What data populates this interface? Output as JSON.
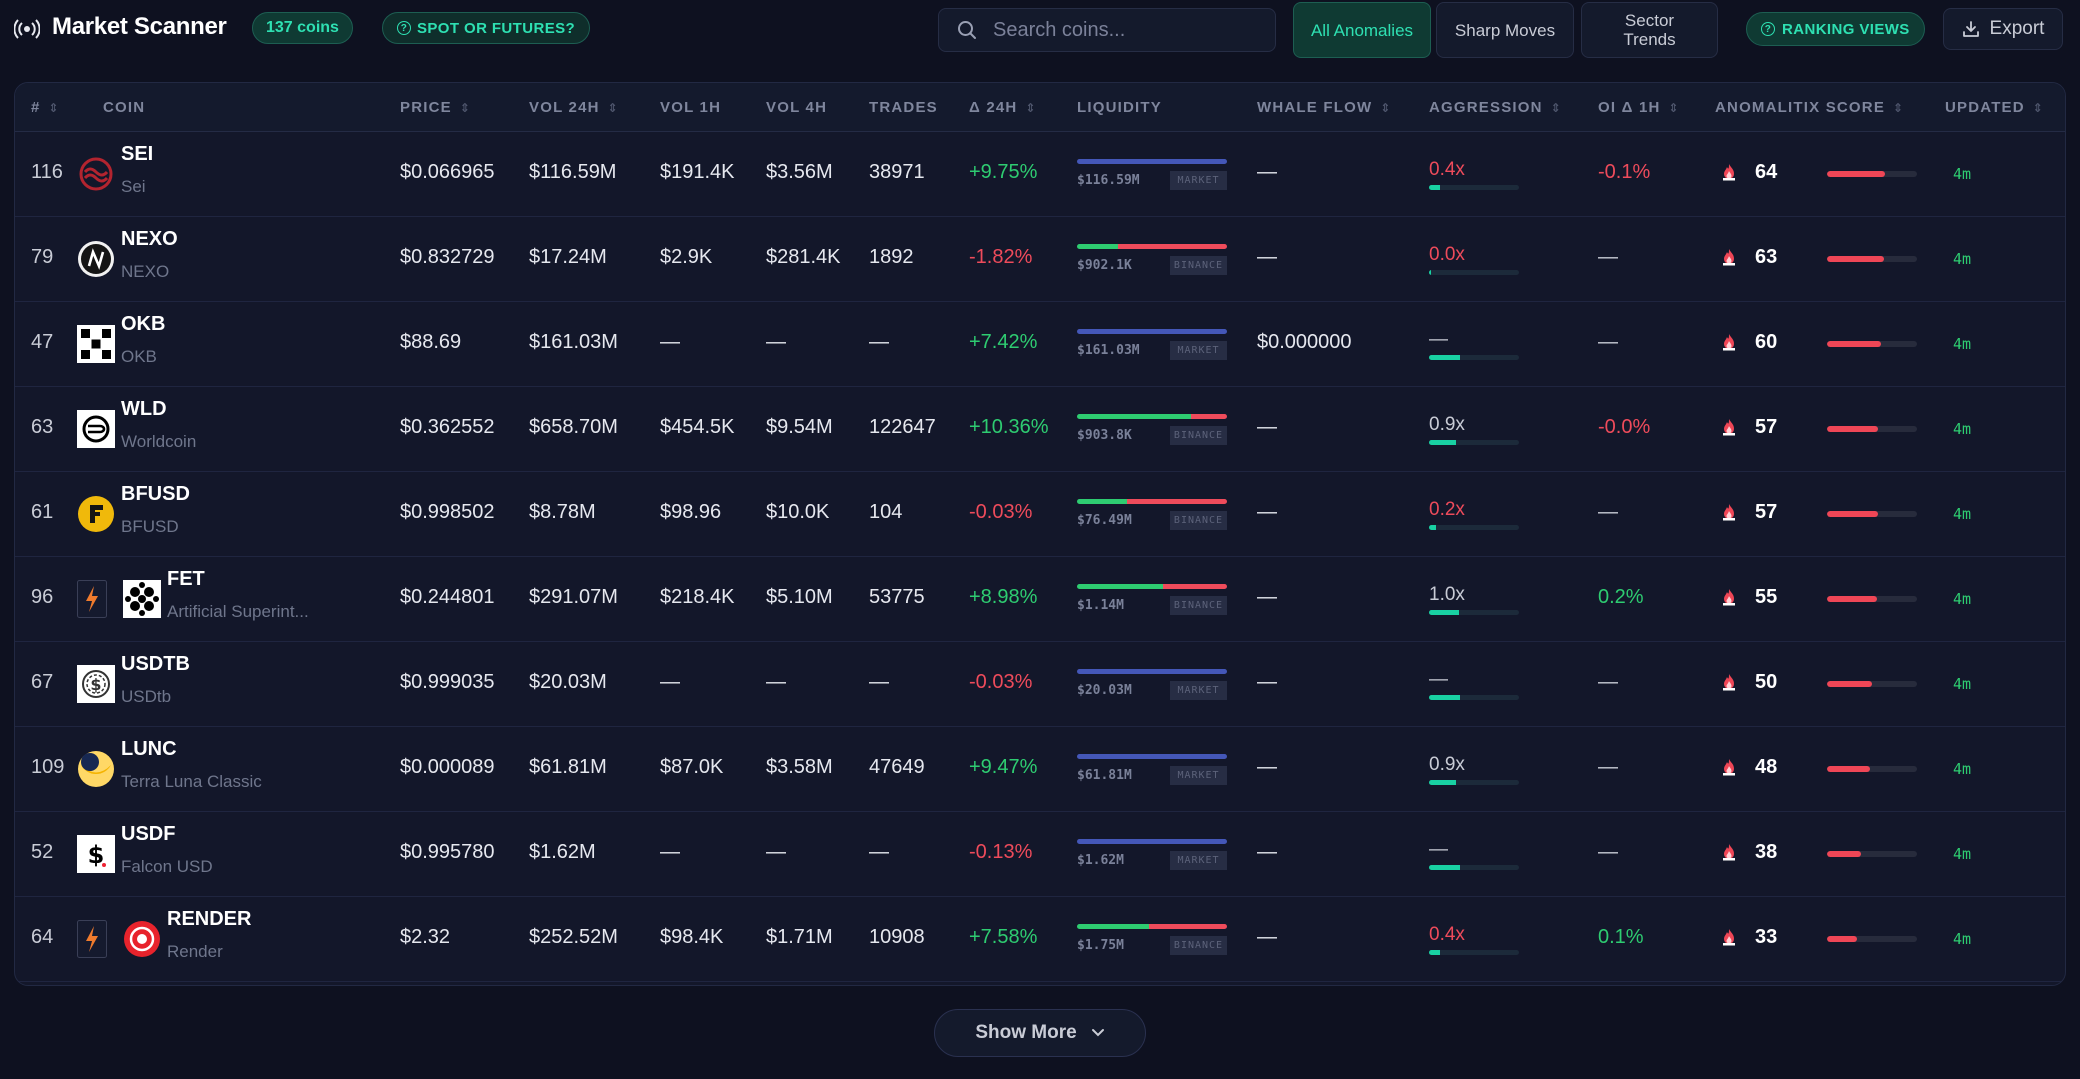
{
  "header": {
    "title": "Market Scanner",
    "coin_count": "137 coins",
    "spot_futures": "SPOT OR FUTURES?",
    "search_placeholder": "Search coins...",
    "tabs": [
      "All Anomalies",
      "Sharp Moves",
      "Sector Trends"
    ],
    "ranking_views": "RANKING VIEWS",
    "export": "Export",
    "accent_color": "#2ee0b2"
  },
  "columns": [
    "#",
    "COIN",
    "PRICE",
    "VOL 24H",
    "VOL 1H",
    "VOL 4H",
    "TRADES",
    "Δ 24H",
    "LIQUIDITY",
    "WHALE FLOW",
    "AGGRESSION",
    "OI Δ 1H",
    "ANOMALITIX SCORE",
    "UPDATED"
  ],
  "rows": [
    {
      "rank": "116",
      "symbol": "SEI",
      "name": "Sei",
      "logo": "sei-logo",
      "price": "$0.066965",
      "vol24": "$116.59M",
      "vol1h": "$191.4K",
      "vol4h": "$3.56M",
      "trades": "38971",
      "chg": "+9.75%",
      "chg_dir": "pos",
      "liq_val": "$116.59M",
      "liq_src": "MARKET",
      "liq_type": "market",
      "liq_green": 0,
      "whale": "—",
      "agg": "0.4x",
      "agg_dir": "neg",
      "agg_fill": 0.12,
      "oi": "-0.1%",
      "oi_dir": "neg",
      "score": "64",
      "score_fill": 0.64,
      "updated": "4m"
    },
    {
      "rank": "79",
      "symbol": "NEXO",
      "name": "NEXO",
      "logo": "nexo-logo",
      "price": "$0.832729",
      "vol24": "$17.24M",
      "vol1h": "$2.9K",
      "vol4h": "$281.4K",
      "trades": "1892",
      "chg": "-1.82%",
      "chg_dir": "neg",
      "liq_val": "$902.1K",
      "liq_src": "BINANCE",
      "liq_type": "binance",
      "liq_green": 0.27,
      "whale": "—",
      "agg": "0.0x",
      "agg_dir": "neg",
      "agg_fill": 0.02,
      "oi": "—",
      "oi_dir": "muted",
      "score": "63",
      "score_fill": 0.63,
      "updated": "4m"
    },
    {
      "rank": "47",
      "symbol": "OKB",
      "name": "OKB",
      "logo": "okb-logo",
      "price": "$88.69",
      "vol24": "$161.03M",
      "vol1h": "—",
      "vol4h": "—",
      "trades": "—",
      "chg": "+7.42%",
      "chg_dir": "pos",
      "liq_val": "$161.03M",
      "liq_src": "MARKET",
      "liq_type": "market",
      "liq_green": 0,
      "whale": "$0.000000",
      "agg": "—",
      "agg_dir": "muted",
      "agg_fill": 0.34,
      "oi": "—",
      "oi_dir": "muted",
      "score": "60",
      "score_fill": 0.6,
      "updated": "4m"
    },
    {
      "rank": "63",
      "symbol": "WLD",
      "name": "Worldcoin",
      "logo": "wld-logo",
      "price": "$0.362552",
      "vol24": "$658.70M",
      "vol1h": "$454.5K",
      "vol4h": "$9.54M",
      "trades": "122647",
      "chg": "+10.36%",
      "chg_dir": "pos",
      "liq_val": "$903.8K",
      "liq_src": "BINANCE",
      "liq_type": "binance",
      "liq_green": 0.76,
      "whale": "—",
      "agg": "0.9x",
      "agg_dir": "muted",
      "agg_fill": 0.3,
      "oi": "-0.0%",
      "oi_dir": "neg",
      "score": "57",
      "score_fill": 0.57,
      "updated": "4m"
    },
    {
      "rank": "61",
      "symbol": "BFUSD",
      "name": "BFUSD",
      "logo": "bfusd-logo",
      "price": "$0.998502",
      "vol24": "$8.78M",
      "vol1h": "$98.96",
      "vol4h": "$10.0K",
      "trades": "104",
      "chg": "-0.03%",
      "chg_dir": "neg",
      "liq_val": "$76.49M",
      "liq_src": "BINANCE",
      "liq_type": "binance",
      "liq_green": 0.33,
      "whale": "—",
      "agg": "0.2x",
      "agg_dir": "neg",
      "agg_fill": 0.08,
      "oi": "—",
      "oi_dir": "muted",
      "score": "57",
      "score_fill": 0.57,
      "updated": "4m"
    },
    {
      "rank": "96",
      "symbol": "FET",
      "name": "Artificial Superint...",
      "logo": "fet-logo",
      "extra_icon": "bolt-icon",
      "price": "$0.244801",
      "vol24": "$291.07M",
      "vol1h": "$218.4K",
      "vol4h": "$5.10M",
      "trades": "53775",
      "chg": "+8.98%",
      "chg_dir": "pos",
      "liq_val": "$1.14M",
      "liq_src": "BINANCE",
      "liq_type": "binance",
      "liq_green": 0.57,
      "whale": "—",
      "agg": "1.0x",
      "agg_dir": "muted",
      "agg_fill": 0.33,
      "oi": "0.2%",
      "oi_dir": "pos",
      "score": "55",
      "score_fill": 0.55,
      "updated": "4m"
    },
    {
      "rank": "67",
      "symbol": "USDTB",
      "name": "USDtb",
      "logo": "usdtb-logo",
      "price": "$0.999035",
      "vol24": "$20.03M",
      "vol1h": "—",
      "vol4h": "—",
      "trades": "—",
      "chg": "-0.03%",
      "chg_dir": "neg",
      "liq_val": "$20.03M",
      "liq_src": "MARKET",
      "liq_type": "market",
      "liq_green": 0,
      "whale": "—",
      "agg": "—",
      "agg_dir": "muted",
      "agg_fill": 0.34,
      "oi": "—",
      "oi_dir": "muted",
      "score": "50",
      "score_fill": 0.5,
      "updated": "4m"
    },
    {
      "rank": "109",
      "symbol": "LUNC",
      "name": "Terra Luna Classic",
      "logo": "lunc-logo",
      "price": "$0.000089",
      "vol24": "$61.81M",
      "vol1h": "$87.0K",
      "vol4h": "$3.58M",
      "trades": "47649",
      "chg": "+9.47%",
      "chg_dir": "pos",
      "liq_val": "$61.81M",
      "liq_src": "MARKET",
      "liq_type": "market",
      "liq_green": 0,
      "whale": "—",
      "agg": "0.9x",
      "agg_dir": "muted",
      "agg_fill": 0.3,
      "oi": "—",
      "oi_dir": "muted",
      "score": "48",
      "score_fill": 0.48,
      "updated": "4m"
    },
    {
      "rank": "52",
      "symbol": "USDF",
      "name": "Falcon USD",
      "logo": "usdf-logo",
      "price": "$0.995780",
      "vol24": "$1.62M",
      "vol1h": "—",
      "vol4h": "—",
      "trades": "—",
      "chg": "-0.13%",
      "chg_dir": "neg",
      "liq_val": "$1.62M",
      "liq_src": "MARKET",
      "liq_type": "market",
      "liq_green": 0,
      "whale": "—",
      "agg": "—",
      "agg_dir": "muted",
      "agg_fill": 0.34,
      "oi": "—",
      "oi_dir": "muted",
      "score": "38",
      "score_fill": 0.38,
      "updated": "4m"
    },
    {
      "rank": "64",
      "symbol": "RENDER",
      "name": "Render",
      "logo": "render-logo",
      "extra_icon": "bolt-icon",
      "price": "$2.32",
      "vol24": "$252.52M",
      "vol1h": "$98.4K",
      "vol4h": "$1.71M",
      "trades": "10908",
      "chg": "+7.58%",
      "chg_dir": "pos",
      "liq_val": "$1.75M",
      "liq_src": "BINANCE",
      "liq_type": "binance",
      "liq_green": 0.48,
      "whale": "—",
      "agg": "0.4x",
      "agg_dir": "neg",
      "agg_fill": 0.12,
      "oi": "0.1%",
      "oi_dir": "pos",
      "score": "33",
      "score_fill": 0.33,
      "updated": "4m"
    }
  ],
  "show_more": "Show More"
}
